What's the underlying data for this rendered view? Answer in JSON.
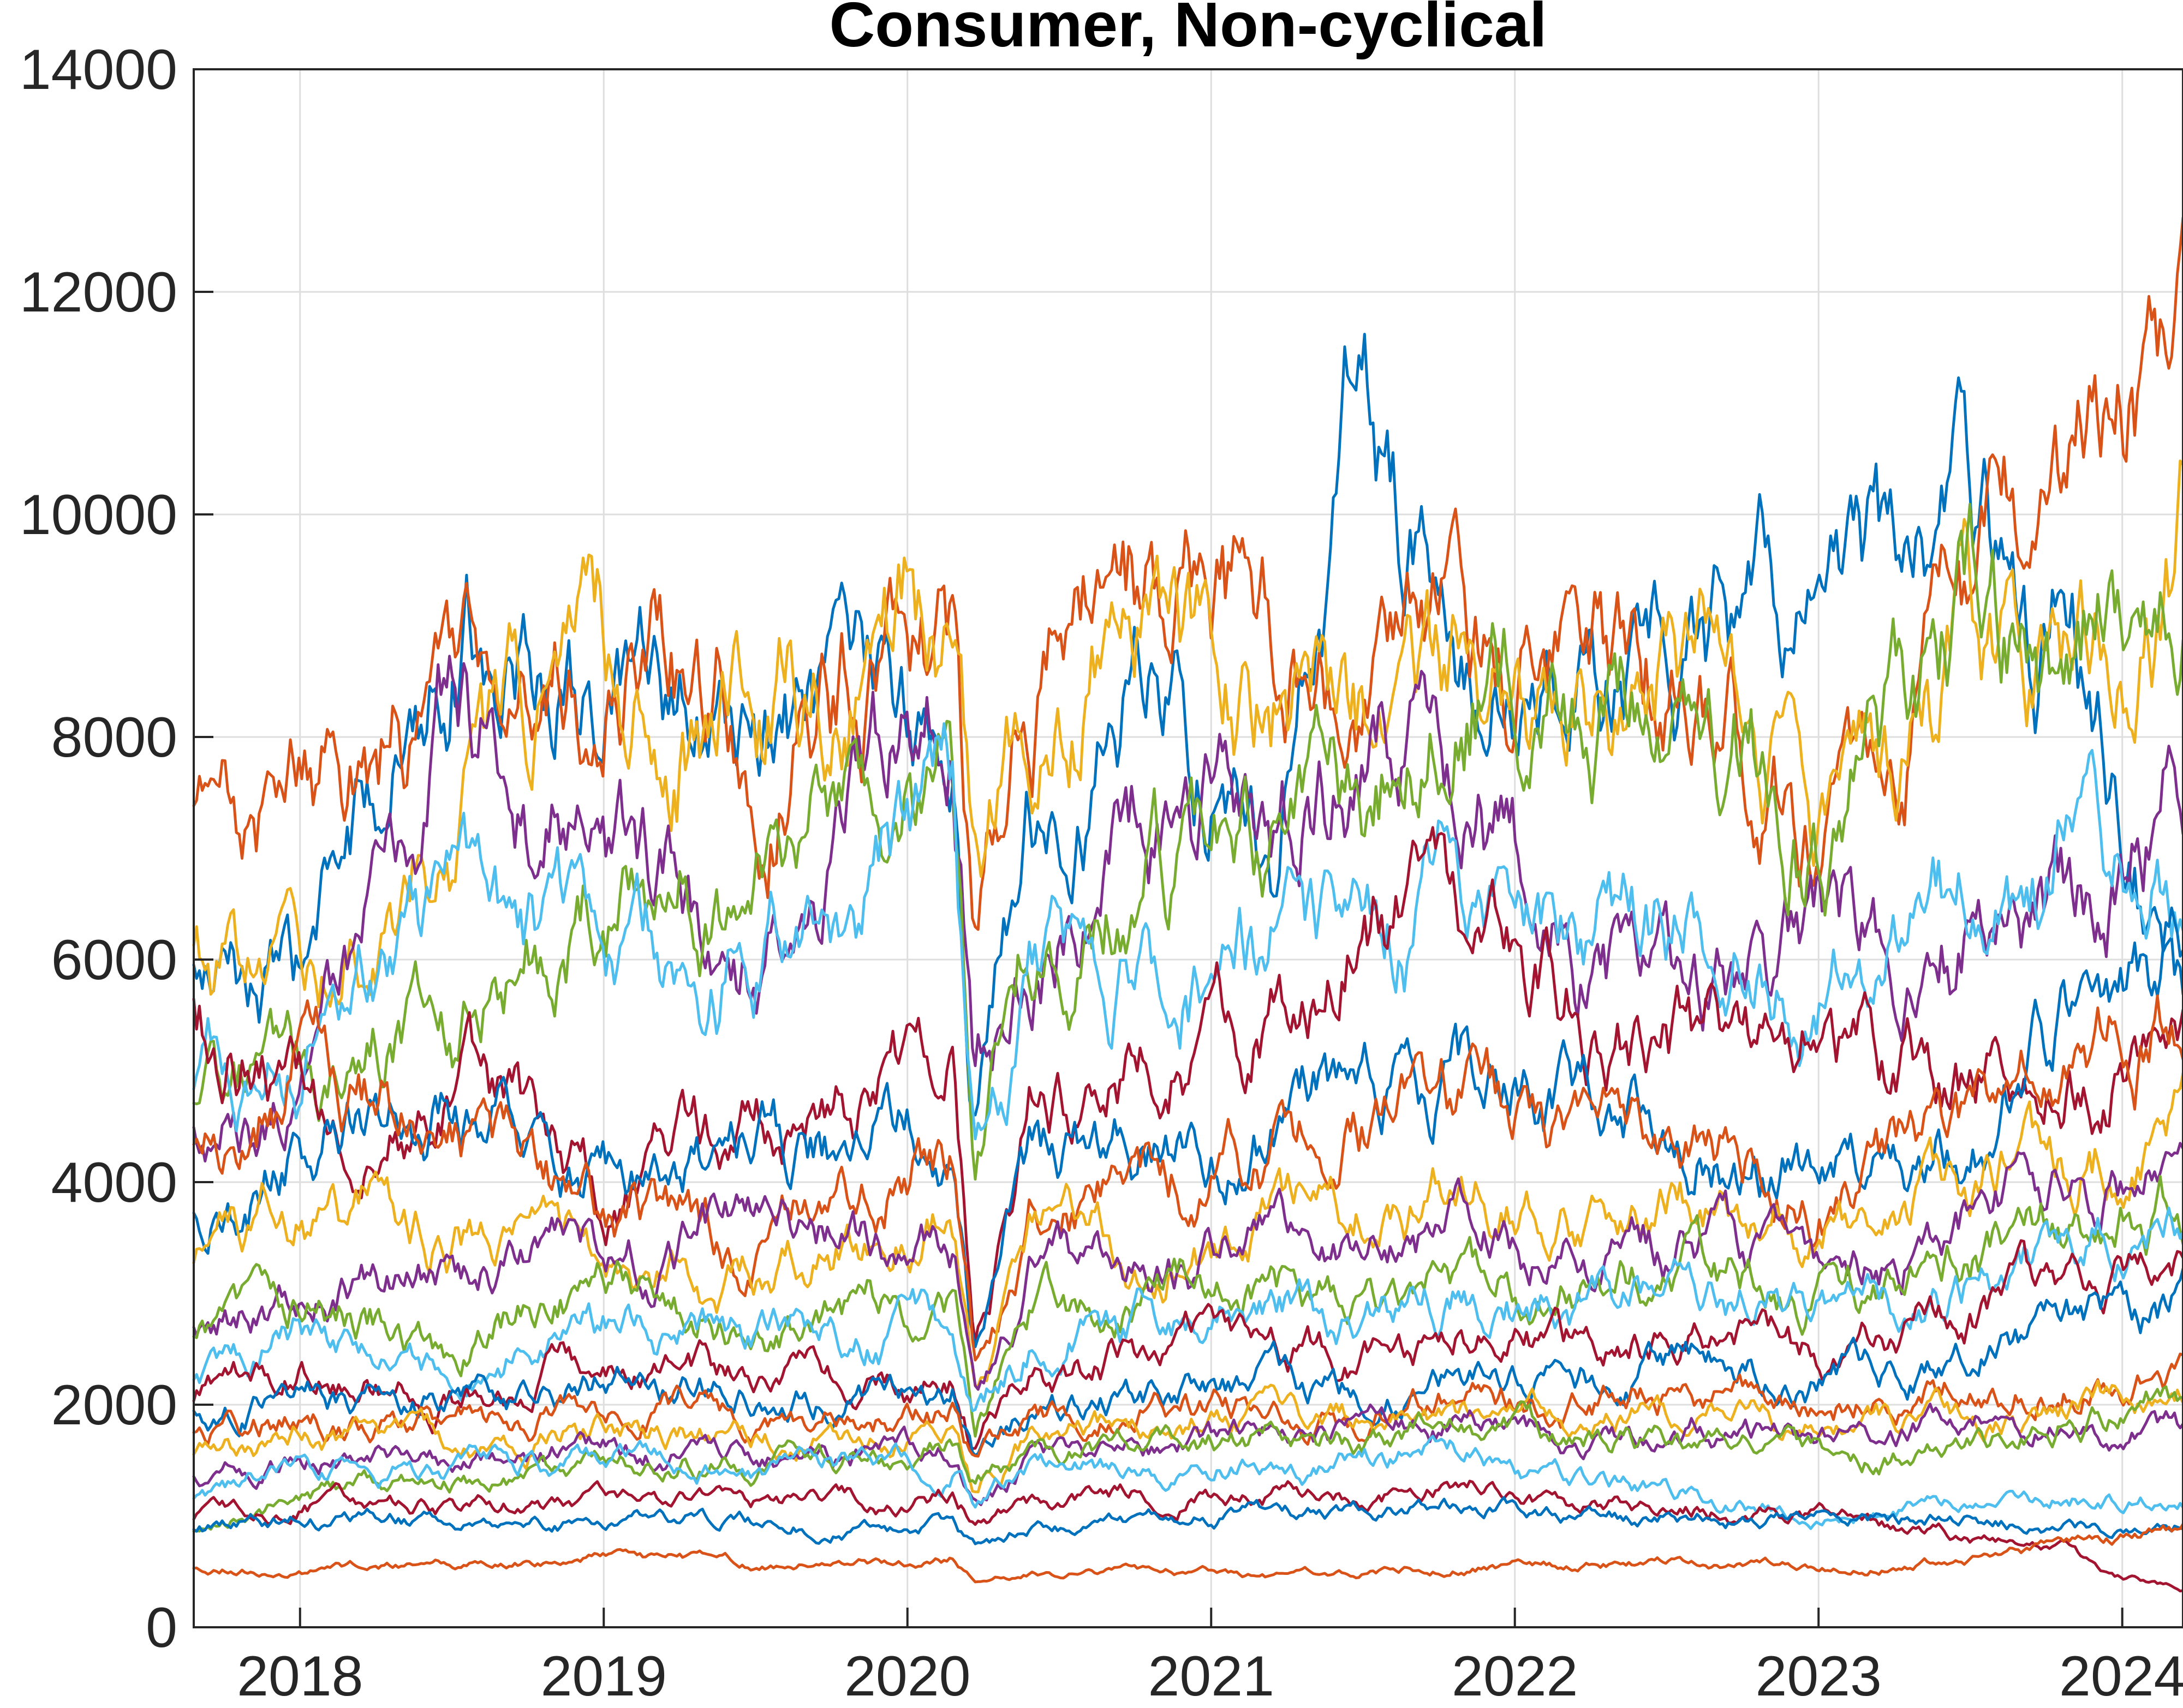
{
  "chart_data": {
    "type": "line",
    "title": "Consumer, Non-cyclical",
    "xlabel": "",
    "ylabel": "",
    "xlim": [
      2017.65,
      2024.2
    ],
    "ylim": [
      0,
      14000
    ],
    "x_ticks": [
      2018,
      2019,
      2020,
      2021,
      2022,
      2023,
      2024
    ],
    "x_tick_labels": [
      "2018",
      "2019",
      "2020",
      "2021",
      "2022",
      "2023",
      "2024"
    ],
    "y_ticks": [
      0,
      2000,
      4000,
      6000,
      8000,
      10000,
      12000,
      14000
    ],
    "y_tick_labels": [
      "0",
      "2000",
      "4000",
      "6000",
      "8000",
      "10000",
      "12000",
      "14000"
    ],
    "grid": true,
    "legend": "none",
    "colors": [
      "#0072bd",
      "#d95319",
      "#edb120",
      "#7e2f8e",
      "#77ac30",
      "#4dbeee",
      "#a2142f"
    ],
    "anchor_x": [
      2017.65,
      2018.0,
      2018.5,
      2019.0,
      2019.5,
      2020.0,
      2020.15,
      2020.22,
      2020.4,
      2020.8,
      2021.2,
      2021.5,
      2021.8,
      2022.2,
      2022.6,
      2023.0,
      2023.5,
      2023.8,
      2024.0,
      2024.2
    ],
    "series": [
      {
        "values": [
          5800,
          5650,
          9400,
          8300,
          7850,
          8000,
          7600,
          4600,
          7400,
          8700,
          6900,
          11500,
          8500,
          8200,
          8600,
          9300,
          9600,
          9200,
          7600,
          5800
        ]
      },
      {
        "values": [
          7150,
          7700,
          8200,
          8700,
          8450,
          8800,
          8900,
          5900,
          8500,
          9300,
          8800,
          7900,
          8700,
          8300,
          8700,
          7200,
          8800,
          9800,
          10300,
          11300
        ]
      },
      {
        "values": [
          5900,
          5700,
          7500,
          8600,
          8400,
          9000,
          8700,
          6500,
          8700,
          9100,
          8500,
          7900,
          8300,
          8200,
          8600,
          7000,
          8700,
          8600,
          8500,
          9900
        ]
      },
      {
        "values": [
          4300,
          4700,
          8300,
          6900,
          6200,
          8200,
          7900,
          5000,
          6100,
          7300,
          7300,
          7700,
          8000,
          6000,
          5500,
          6300,
          6300,
          6600,
          6800,
          7800
        ]
      },
      {
        "values": [
          4900,
          5000,
          5400,
          6900,
          6700,
          7700,
          7600,
          3900,
          6200,
          6800,
          7100,
          6900,
          9000,
          8000,
          8600,
          7100,
          8900,
          8700,
          9400,
          10000
        ]
      },
      {
        "values": [
          5000,
          5300,
          6300,
          6100,
          6000,
          7300,
          7200,
          4100,
          5600,
          5900,
          6300,
          6000,
          6700,
          6100,
          6600,
          5800,
          6400,
          7000,
          6800,
          6500
        ]
      },
      {
        "values": [
          5800,
          4700,
          4900,
          3900,
          4500,
          4900,
          5200,
          2700,
          4600,
          5300,
          5500,
          6500,
          6200,
          5600,
          5100,
          5300,
          5000,
          4800,
          5100,
          4900
        ]
      },
      {
        "values": [
          3800,
          4400,
          4800,
          4000,
          4300,
          4400,
          4500,
          2800,
          4100,
          4300,
          4600,
          4700,
          4900,
          4600,
          4600,
          4100,
          4600,
          5400,
          5600,
          6000
        ]
      },
      {
        "values": [
          4400,
          5000,
          4500,
          3700,
          3400,
          4200,
          4400,
          2500,
          3800,
          4000,
          4200,
          4500,
          4700,
          4200,
          4400,
          3900,
          4400,
          5000,
          5300,
          5600
        ]
      },
      {
        "values": [
          3300,
          3900,
          3500,
          3300,
          3100,
          3600,
          3800,
          2300,
          3400,
          3500,
          3600,
          3700,
          3900,
          3600,
          3800,
          3600,
          4000,
          4300,
          4400,
          4700
        ]
      },
      {
        "values": [
          2700,
          3200,
          3000,
          3400,
          3600,
          3300,
          3400,
          2100,
          3200,
          3300,
          3400,
          3200,
          3600,
          3300,
          3500,
          3200,
          3700,
          4000,
          4200,
          4100
        ]
      },
      {
        "values": [
          2600,
          3000,
          2600,
          3100,
          2800,
          2900,
          3000,
          1800,
          2800,
          2900,
          3100,
          3000,
          3200,
          3100,
          3300,
          3000,
          3300,
          3600,
          3700,
          3800
        ]
      },
      {
        "values": [
          2200,
          2600,
          2300,
          2700,
          2500,
          2700,
          2800,
          1900,
          2500,
          2800,
          2900,
          2700,
          3000,
          2900,
          3000,
          2800,
          3100,
          3300,
          3500,
          3500
        ]
      },
      {
        "values": [
          2000,
          2300,
          2100,
          2400,
          2200,
          2300,
          2400,
          1600,
          2200,
          2500,
          2600,
          2400,
          2700,
          2500,
          2700,
          2400,
          2800,
          3000,
          3100,
          3300
        ]
      },
      {
        "values": [
          1900,
          2100,
          2000,
          2200,
          2100,
          2000,
          2100,
          1400,
          1900,
          2100,
          2200,
          2100,
          2300,
          2200,
          2400,
          2200,
          2500,
          2700,
          2800,
          2900
        ]
      },
      {
        "values": [
          1700,
          1900,
          1800,
          2000,
          1900,
          1900,
          2000,
          1500,
          1800,
          2000,
          2000,
          1900,
          2100,
          2000,
          2100,
          2000,
          2200,
          2300,
          2200,
          2200
        ]
      },
      {
        "values": [
          1500,
          1700,
          1600,
          1800,
          1700,
          1700,
          1800,
          1300,
          1700,
          1800,
          1900,
          1800,
          1900,
          1800,
          1900,
          1800,
          1900,
          2000,
          2000,
          2100
        ]
      },
      {
        "values": [
          1300,
          1500,
          1500,
          1600,
          1500,
          1600,
          1600,
          1200,
          1500,
          1600,
          1700,
          1700,
          1800,
          1700,
          1800,
          1700,
          1800,
          1900,
          1800,
          1700
        ]
      },
      {
        "values": [
          900,
          1200,
          1300,
          1400,
          1500,
          1500,
          1600,
          1300,
          1500,
          1600,
          1700,
          1700,
          1800,
          1700,
          1600,
          1500,
          1600,
          1900,
          2000,
          2100
        ]
      },
      {
        "values": [
          1200,
          1400,
          1400,
          1500,
          1400,
          1500,
          1500,
          1100,
          1400,
          1500,
          1500,
          1500,
          1600,
          1300,
          1200,
          1000,
          1100,
          1200,
          1200,
          1200
        ]
      },
      {
        "values": [
          1000,
          1100,
          1100,
          1100,
          1100,
          1100,
          1200,
          1000,
          1100,
          1200,
          1200,
          1200,
          1300,
          1100,
          1100,
          1000,
          800,
          700,
          450,
          350
        ]
      },
      {
        "values": [
          900,
          950,
          950,
          950,
          950,
          900,
          950,
          700,
          900,
          950,
          1000,
          1000,
          1100,
          1000,
          1000,
          950,
          950,
          900,
          850,
          950
        ]
      },
      {
        "values": [
          540,
          520,
          560,
          620,
          580,
          560,
          600,
          420,
          480,
          500,
          470,
          520,
          560,
          560,
          580,
          540,
          600,
          700,
          800,
          900
        ]
      }
    ]
  }
}
